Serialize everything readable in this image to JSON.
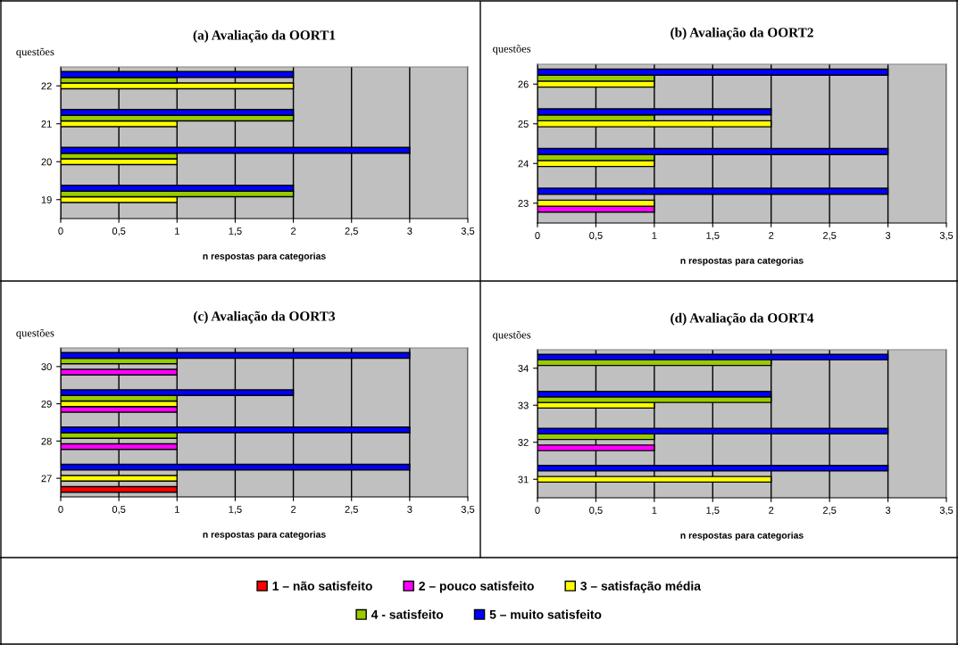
{
  "chart_data": [
    {
      "type": "bar",
      "orientation": "horizontal",
      "title": "(a) Avaliação da OORT1",
      "ylabel": "questões",
      "xlabel": "n respostas para categorias",
      "categories": [
        "22",
        "21",
        "20",
        "19"
      ],
      "xlim": [
        0,
        3.5
      ],
      "xticks": [
        0,
        {
          "value": 0.5,
          "label": "0,5"
        },
        1,
        {
          "value": 1.5,
          "label": "1,5"
        },
        2,
        {
          "value": 2.5,
          "label": "2,5"
        },
        3,
        {
          "value": 3.5,
          "label": "3,5"
        }
      ],
      "grid": "x",
      "legend": "bottom",
      "series": [
        {
          "name": "1 – não satisfeito",
          "color": "#ff0000",
          "values": [
            null,
            null,
            null,
            null
          ]
        },
        {
          "name": "2 – pouco satisfeito",
          "color": "#ff00ff",
          "values": [
            null,
            null,
            null,
            null
          ]
        },
        {
          "name": "3 – satisfação média",
          "color": "#ffff00",
          "values": [
            2,
            1,
            1,
            1
          ]
        },
        {
          "name": "4 - satisfeito",
          "color": "#99cc00",
          "values": [
            1,
            2,
            1,
            2
          ]
        },
        {
          "name": "5 – muito satisfeito",
          "color": "#0000ff",
          "values": [
            2,
            2,
            3,
            2
          ]
        }
      ]
    },
    {
      "type": "bar",
      "orientation": "horizontal",
      "title": "(b) Avaliação da OORT2",
      "ylabel": "questões",
      "xlabel": "n respostas para categorias",
      "categories": [
        "26",
        "25",
        "24",
        "23"
      ],
      "xlim": [
        0,
        3.5
      ],
      "xticks": [
        0,
        {
          "value": 0.5,
          "label": "0,5"
        },
        1,
        {
          "value": 1.5,
          "label": "1,5"
        },
        2,
        {
          "value": 2.5,
          "label": "2,5"
        },
        3,
        {
          "value": 3.5,
          "label": "3,5"
        }
      ],
      "grid": "x",
      "series": [
        {
          "color": "#ff0000",
          "values": [
            null,
            null,
            null,
            null
          ]
        },
        {
          "color": "#ff00ff",
          "values": [
            null,
            null,
            null,
            1
          ]
        },
        {
          "color": "#ffff00",
          "values": [
            1,
            2,
            1,
            1
          ]
        },
        {
          "color": "#99cc00",
          "values": [
            1,
            1,
            1,
            null
          ]
        },
        {
          "color": "#0000ff",
          "values": [
            3,
            2,
            3,
            3
          ]
        }
      ]
    },
    {
      "type": "bar",
      "orientation": "horizontal",
      "title": "(c) Avaliação da OORT3",
      "ylabel": "questões",
      "xlabel": "n respostas para categorias",
      "categories": [
        "30",
        "29",
        "28",
        "27"
      ],
      "xlim": [
        0,
        3.5
      ],
      "xticks": [
        0,
        {
          "value": 0.5,
          "label": "0,5"
        },
        1,
        {
          "value": 1.5,
          "label": "1,5"
        },
        2,
        {
          "value": 2.5,
          "label": "2,5"
        },
        3,
        {
          "value": 3.5,
          "label": "3,5"
        }
      ],
      "grid": "x",
      "series": [
        {
          "color": "#ff0000",
          "values": [
            null,
            null,
            null,
            1
          ]
        },
        {
          "color": "#ff00ff",
          "values": [
            1,
            1,
            1,
            null
          ]
        },
        {
          "color": "#ffff00",
          "values": [
            null,
            1,
            null,
            1
          ]
        },
        {
          "color": "#99cc00",
          "values": [
            1,
            1,
            1,
            null
          ]
        },
        {
          "color": "#0000ff",
          "values": [
            3,
            2,
            3,
            3
          ]
        }
      ]
    },
    {
      "type": "bar",
      "orientation": "horizontal",
      "title": "(d) Avaliação da OORT4",
      "ylabel": "questões",
      "xlabel": "n respostas para categorias",
      "categories": [
        "34",
        "33",
        "32",
        "31"
      ],
      "xlim": [
        0,
        3.5
      ],
      "xticks": [
        0,
        {
          "value": 0.5,
          "label": "0,5"
        },
        1,
        {
          "value": 1.5,
          "label": "1,5"
        },
        2,
        {
          "value": 2.5,
          "label": "2,5"
        },
        3,
        {
          "value": 3.5,
          "label": "3,5"
        }
      ],
      "grid": "x",
      "series": [
        {
          "color": "#ff0000",
          "values": [
            null,
            null,
            null,
            null
          ]
        },
        {
          "color": "#ff00ff",
          "values": [
            null,
            null,
            1,
            null
          ]
        },
        {
          "color": "#ffff00",
          "values": [
            null,
            1,
            null,
            2
          ]
        },
        {
          "color": "#99cc00",
          "values": [
            2,
            2,
            1,
            null
          ]
        },
        {
          "color": "#0000ff",
          "values": [
            3,
            2,
            3,
            3
          ]
        }
      ]
    }
  ]
}
